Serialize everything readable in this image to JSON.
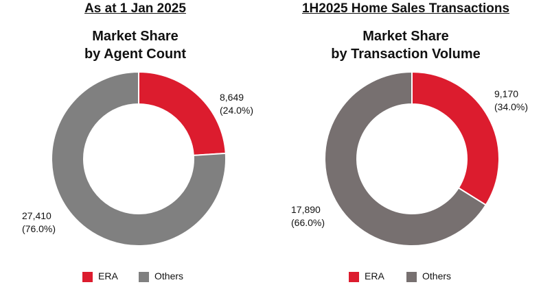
{
  "colors": {
    "era": "#DC1C2E",
    "others_left": "#808080",
    "others_right": "#777070"
  },
  "chart_data": [
    {
      "type": "pie",
      "heading": "As at 1 Jan 2025",
      "title_lines": [
        "Market Share",
        "by Agent Count"
      ],
      "slices": [
        {
          "name": "ERA",
          "value": 8649,
          "value_label": "8,649",
          "pct_label": "(24.0%)"
        },
        {
          "name": "Others",
          "value": 27410,
          "value_label": "27,410",
          "pct_label": "(76.0%)"
        }
      ],
      "legend": [
        "ERA",
        "Others"
      ],
      "legend_position": "bottom"
    },
    {
      "type": "pie",
      "heading": "1H2025 Home Sales Transactions",
      "title_lines": [
        "Market Share",
        "by Transaction Volume"
      ],
      "slices": [
        {
          "name": "ERA",
          "value": 9170,
          "value_label": "9,170",
          "pct_label": "(34.0%)"
        },
        {
          "name": "Others",
          "value": 17890,
          "value_label": "17,890",
          "pct_label": "(66.0%)"
        }
      ],
      "legend": [
        "ERA",
        "Others"
      ],
      "legend_position": "bottom"
    }
  ]
}
